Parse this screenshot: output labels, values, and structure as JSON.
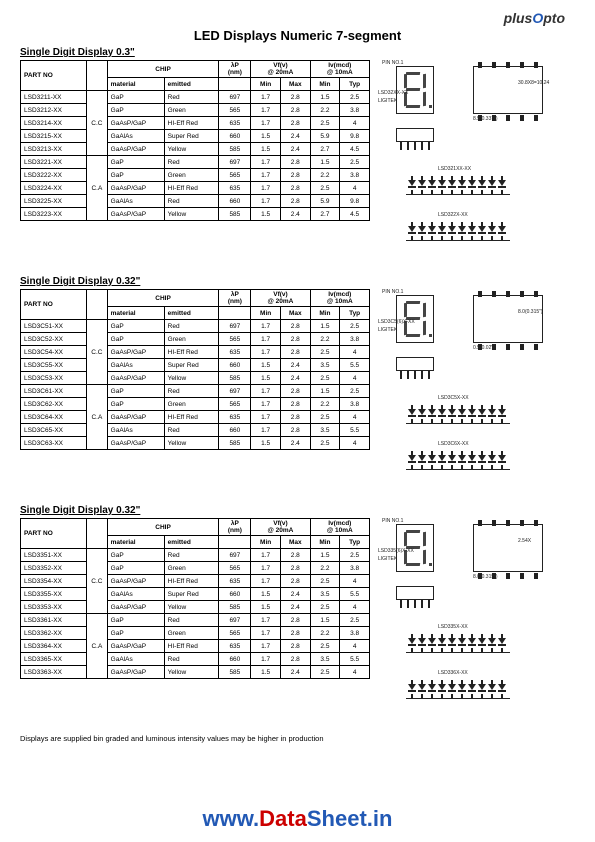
{
  "brand": {
    "plus": "plus",
    "opto": "Opto"
  },
  "page_title": "LED Displays Numeric 7-segment",
  "header": {
    "part_no": "PART NO",
    "chip": "CHIP",
    "lp": "λP",
    "lp_unit": "(nm)",
    "vf": "Vf(v)",
    "vf_cond": "@ 20mA",
    "iv": "Iv(mcd)",
    "iv_cond": "@ 10mA",
    "material": "material",
    "emitted": "emitted",
    "min": "Min",
    "max": "Max",
    "typ": "Typ"
  },
  "sections": [
    {
      "title": "Single Digit Display 0.3\"",
      "groups": [
        {
          "cc": "C.C",
          "rows": [
            {
              "pn": "LSD3211-XX",
              "mat": "GaP",
              "emit": "Red",
              "lp": "697",
              "vfmin": "1.7",
              "vfmax": "2.8",
              "ivmin": "1.5",
              "ivtyp": "2.5"
            },
            {
              "pn": "LSD3212-XX",
              "mat": "GaP",
              "emit": "Green",
              "lp": "565",
              "vfmin": "1.7",
              "vfmax": "2.8",
              "ivmin": "2.2",
              "ivtyp": "3.8"
            },
            {
              "pn": "LSD3214-XX",
              "mat": "GaAsP/GaP",
              "emit": "HI-Eff Red",
              "lp": "635",
              "vfmin": "1.7",
              "vfmax": "2.8",
              "ivmin": "2.5",
              "ivtyp": "4"
            },
            {
              "pn": "LSD3215-XX",
              "mat": "GaAlAs",
              "emit": "Super Red",
              "lp": "660",
              "vfmin": "1.5",
              "vfmax": "2.4",
              "ivmin": "5.9",
              "ivtyp": "9.8"
            },
            {
              "pn": "LSD3213-XX",
              "mat": "GaAsP/GaP",
              "emit": "Yellow",
              "lp": "585",
              "vfmin": "1.5",
              "vfmax": "2.4",
              "ivmin": "2.7",
              "ivtyp": "4.5"
            }
          ]
        },
        {
          "cc": "C.A",
          "rows": [
            {
              "pn": "LSD3221-XX",
              "mat": "GaP",
              "emit": "Red",
              "lp": "697",
              "vfmin": "1.7",
              "vfmax": "2.8",
              "ivmin": "1.5",
              "ivtyp": "2.5"
            },
            {
              "pn": "LSD3222-XX",
              "mat": "GaP",
              "emit": "Green",
              "lp": "565",
              "vfmin": "1.7",
              "vfmax": "2.8",
              "ivmin": "2.2",
              "ivtyp": "3.8"
            },
            {
              "pn": "LSD3224-XX",
              "mat": "GaAsP/GaP",
              "emit": "HI-Eff Red",
              "lp": "635",
              "vfmin": "1.7",
              "vfmax": "2.8",
              "ivmin": "2.5",
              "ivtyp": "4"
            },
            {
              "pn": "LSD3225-XX",
              "mat": "GaAlAs",
              "emit": "Red",
              "lp": "660",
              "vfmin": "1.7",
              "vfmax": "2.8",
              "ivmin": "5.9",
              "ivtyp": "9.8"
            },
            {
              "pn": "LSD3223-XX",
              "mat": "GaAsP/GaP",
              "emit": "Yellow",
              "lp": "585",
              "vfmin": "1.5",
              "vfmax": "2.4",
              "ivmin": "2.7",
              "ivtyp": "4.5"
            }
          ]
        }
      ],
      "diagram_labels": [
        "PIN NO.1",
        "LSD32XX-XX",
        "LIGITEK",
        "30.8X8=10.24",
        "8.5(0.337\")",
        "0.8(0.03\")",
        "LSD321XX-XX",
        "LSD322X-XX"
      ]
    },
    {
      "title": "Single Digit Display 0.32\"",
      "groups": [
        {
          "cc": "C.C",
          "rows": [
            {
              "pn": "LSD3C51-XX",
              "mat": "GaP",
              "emit": "Red",
              "lp": "697",
              "vfmin": "1.7",
              "vfmax": "2.8",
              "ivmin": "1.5",
              "ivtyp": "2.5"
            },
            {
              "pn": "LSD3C52-XX",
              "mat": "GaP",
              "emit": "Green",
              "lp": "565",
              "vfmin": "1.7",
              "vfmax": "2.8",
              "ivmin": "2.2",
              "ivtyp": "3.8"
            },
            {
              "pn": "LSD3C54-XX",
              "mat": "GaAsP/GaP",
              "emit": "HI-Eff Red",
              "lp": "635",
              "vfmin": "1.7",
              "vfmax": "2.8",
              "ivmin": "2.5",
              "ivtyp": "4"
            },
            {
              "pn": "LSD3C55-XX",
              "mat": "GaAlAs",
              "emit": "Super Red",
              "lp": "660",
              "vfmin": "1.5",
              "vfmax": "2.4",
              "ivmin": "3.5",
              "ivtyp": "5.5"
            },
            {
              "pn": "LSD3C53-XX",
              "mat": "GaAsP/GaP",
              "emit": "Yellow",
              "lp": "585",
              "vfmin": "1.5",
              "vfmax": "2.4",
              "ivmin": "2.5",
              "ivtyp": "4"
            }
          ]
        },
        {
          "cc": "C.A",
          "rows": [
            {
              "pn": "LSD3C61-XX",
              "mat": "GaP",
              "emit": "Red",
              "lp": "697",
              "vfmin": "1.7",
              "vfmax": "2.8",
              "ivmin": "1.5",
              "ivtyp": "2.5"
            },
            {
              "pn": "LSD3C62-XX",
              "mat": "GaP",
              "emit": "Green",
              "lp": "565",
              "vfmin": "1.7",
              "vfmax": "2.8",
              "ivmin": "2.2",
              "ivtyp": "3.8"
            },
            {
              "pn": "LSD3C64-XX",
              "mat": "GaAsP/GaP",
              "emit": "HI-Eff Red",
              "lp": "635",
              "vfmin": "1.7",
              "vfmax": "2.8",
              "ivmin": "2.5",
              "ivtyp": "4"
            },
            {
              "pn": "LSD3C65-XX",
              "mat": "GaAlAs",
              "emit": "Red",
              "lp": "660",
              "vfmin": "1.7",
              "vfmax": "2.8",
              "ivmin": "3.5",
              "ivtyp": "5.5"
            },
            {
              "pn": "LSD3C63-XX",
              "mat": "GaAsP/GaP",
              "emit": "Yellow",
              "lp": "585",
              "vfmin": "1.5",
              "vfmax": "2.4",
              "ivmin": "2.5",
              "ivtyp": "4"
            }
          ]
        }
      ],
      "diagram_labels": [
        "PIN NO.1",
        "LSD3C5(6)X-XX",
        "LIGITEK",
        "8.0(0.315\")",
        "0.5(0.02\")",
        "LSD3C5X-XX",
        "LSD3C6X-XX"
      ]
    },
    {
      "title": "Single Digit Display 0.32\"",
      "groups": [
        {
          "cc": "C.C",
          "rows": [
            {
              "pn": "LSD3351-XX",
              "mat": "GaP",
              "emit": "Red",
              "lp": "697",
              "vfmin": "1.7",
              "vfmax": "2.8",
              "ivmin": "1.5",
              "ivtyp": "2.5"
            },
            {
              "pn": "LSD3352-XX",
              "mat": "GaP",
              "emit": "Green",
              "lp": "565",
              "vfmin": "1.7",
              "vfmax": "2.8",
              "ivmin": "2.2",
              "ivtyp": "3.8"
            },
            {
              "pn": "LSD3354-XX",
              "mat": "GaAsP/GaP",
              "emit": "HI-Eff Red",
              "lp": "635",
              "vfmin": "1.7",
              "vfmax": "2.8",
              "ivmin": "2.5",
              "ivtyp": "4"
            },
            {
              "pn": "LSD3355-XX",
              "mat": "GaAlAs",
              "emit": "Super Red",
              "lp": "660",
              "vfmin": "1.5",
              "vfmax": "2.4",
              "ivmin": "3.5",
              "ivtyp": "5.5"
            },
            {
              "pn": "LSD3353-XX",
              "mat": "GaAsP/GaP",
              "emit": "Yellow",
              "lp": "585",
              "vfmin": "1.5",
              "vfmax": "2.4",
              "ivmin": "2.5",
              "ivtyp": "4"
            }
          ]
        },
        {
          "cc": "C.A",
          "rows": [
            {
              "pn": "LSD3361-XX",
              "mat": "GaP",
              "emit": "Red",
              "lp": "697",
              "vfmin": "1.7",
              "vfmax": "2.8",
              "ivmin": "1.5",
              "ivtyp": "2.5"
            },
            {
              "pn": "LSD3362-XX",
              "mat": "GaP",
              "emit": "Green",
              "lp": "565",
              "vfmin": "1.7",
              "vfmax": "2.8",
              "ivmin": "2.2",
              "ivtyp": "3.8"
            },
            {
              "pn": "LSD3364-XX",
              "mat": "GaAsP/GaP",
              "emit": "HI-Eff Red",
              "lp": "635",
              "vfmin": "1.7",
              "vfmax": "2.8",
              "ivmin": "2.5",
              "ivtyp": "4"
            },
            {
              "pn": "LSD3365-XX",
              "mat": "GaAlAs",
              "emit": "Red",
              "lp": "660",
              "vfmin": "1.7",
              "vfmax": "2.8",
              "ivmin": "3.5",
              "ivtyp": "5.5"
            },
            {
              "pn": "LSD3363-XX",
              "mat": "GaAsP/GaP",
              "emit": "Yellow",
              "lp": "585",
              "vfmin": "1.5",
              "vfmax": "2.4",
              "ivmin": "2.5",
              "ivtyp": "4"
            }
          ]
        }
      ],
      "diagram_labels": [
        "PIN NO.1",
        "LSD335(6)X-XX",
        "LIGITEK",
        "2.54X",
        "8.0(0.315\")",
        "LSD335X-XX",
        "LSD336X-XX"
      ]
    }
  ],
  "footnote": "Displays are supplied bin graded and luminous intensity values may be higher in production",
  "watermark": {
    "www": "www.",
    "data": "Data",
    "sheet": "Sheet",
    "in": ".in"
  }
}
